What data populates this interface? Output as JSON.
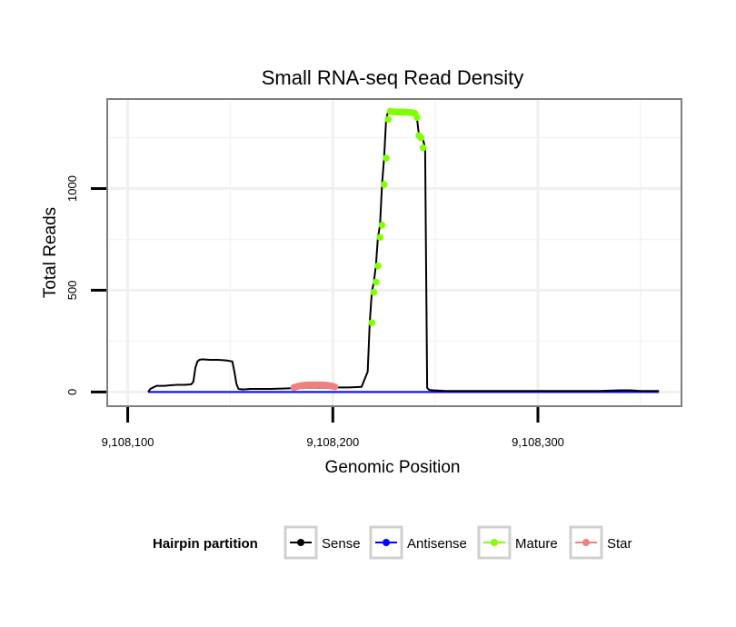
{
  "chart_data": {
    "type": "line",
    "title": "Small RNA-seq Read Density",
    "xlabel": "Genomic Position",
    "ylabel": "Total Reads",
    "xlim": [
      9108090,
      9108370
    ],
    "ylim": [
      -70,
      1440
    ],
    "x_ticks": [
      {
        "value": 9108100,
        "label": "9,108,100"
      },
      {
        "value": 9108200,
        "label": "9,108,200"
      },
      {
        "value": 9108300,
        "label": "9,108,300"
      }
    ],
    "y_ticks": [
      {
        "value": 0,
        "label": "0"
      },
      {
        "value": 500,
        "label": "500"
      },
      {
        "value": 1000,
        "label": "1000"
      }
    ],
    "grid": true,
    "legend": {
      "title": "Hairpin partition",
      "position": "bottom",
      "entries": [
        {
          "name": "Sense",
          "color": "#000000"
        },
        {
          "name": "Antisense",
          "color": "#0000ff"
        },
        {
          "name": "Mature",
          "color": "#80ff00"
        },
        {
          "name": "Star",
          "color": "#f08080"
        }
      ]
    },
    "series": [
      {
        "name": "Sense",
        "color": "#000000",
        "style": "line",
        "x": [
          9108110,
          9108111,
          9108113,
          9108114,
          9108116,
          9108118,
          9108120,
          9108124,
          9108128,
          9108131,
          9108132,
          9108133,
          9108134,
          9108135,
          9108136,
          9108137,
          9108140,
          9108144,
          9108148,
          9108151,
          9108152,
          9108153,
          9108154,
          9108156,
          9108160,
          9108170,
          9108180,
          9108190,
          9108199,
          9108203,
          9108208,
          9108214,
          9108217,
          9108218,
          9108219,
          9108220,
          9108221,
          9108222,
          9108223,
          9108224,
          9108225,
          9108226,
          9108227,
          9108228,
          9108230,
          9108234,
          9108238,
          9108240,
          9108241,
          9108242,
          9108243,
          9108244,
          9108245,
          9108245.5,
          9108246,
          9108247,
          9108249,
          9108255,
          9108270,
          9108290,
          9108310,
          9108330,
          9108340,
          9108345,
          9108350,
          9108359
        ],
        "values": [
          0,
          15,
          25,
          30,
          30,
          30,
          32,
          35,
          35,
          38,
          50,
          120,
          150,
          158,
          160,
          160,
          158,
          158,
          155,
          150,
          100,
          40,
          15,
          12,
          15,
          15,
          18,
          22,
          20,
          22,
          22,
          25,
          100,
          340,
          490,
          540,
          620,
          760,
          820,
          1020,
          1150,
          1340,
          1380,
          1380,
          1378,
          1376,
          1374,
          1370,
          1350,
          1260,
          1250,
          1240,
          1200,
          600,
          20,
          10,
          8,
          5,
          5,
          5,
          5,
          5,
          8,
          8,
          5,
          5
        ]
      },
      {
        "name": "Antisense",
        "color": "#0000ff",
        "style": "line",
        "x": [
          9108110,
          9108359
        ],
        "values": [
          0,
          0
        ]
      },
      {
        "name": "Mature",
        "color": "#80ff00",
        "style": "points",
        "x": [
          9108219,
          9108220,
          9108221,
          9108222,
          9108223,
          9108224,
          9108225,
          9108226,
          9108227,
          9108228,
          9108229,
          9108230,
          9108231,
          9108232,
          9108233,
          9108234,
          9108235,
          9108236,
          9108237,
          9108238,
          9108239,
          9108240,
          9108241,
          9108242,
          9108243,
          9108244
        ],
        "values": [
          340,
          490,
          540,
          620,
          760,
          820,
          1020,
          1150,
          1340,
          1380,
          1378,
          1377,
          1376,
          1376,
          1376,
          1376,
          1375,
          1375,
          1374,
          1374,
          1372,
          1370,
          1350,
          1260,
          1250,
          1200
        ]
      },
      {
        "name": "Star",
        "color": "#f08080",
        "style": "points",
        "x": [
          9108181,
          9108182,
          9108183,
          9108184,
          9108185,
          9108186,
          9108187,
          9108188,
          9108189,
          9108190,
          9108191,
          9108192,
          9108193,
          9108194,
          9108195,
          9108196,
          9108197,
          9108198,
          9108199,
          9108200,
          9108201
        ],
        "values": [
          22,
          25,
          28,
          30,
          32,
          33,
          34,
          35,
          35,
          35,
          35,
          35,
          35,
          35,
          34,
          34,
          33,
          32,
          30,
          28,
          25
        ]
      }
    ]
  }
}
